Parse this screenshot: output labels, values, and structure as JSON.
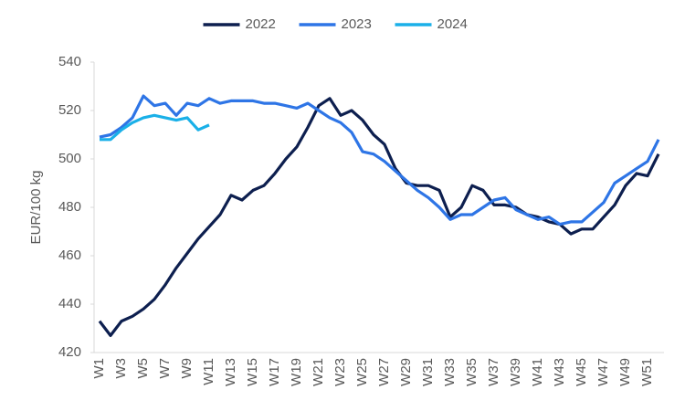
{
  "chart_data": {
    "type": "line",
    "y_label": "EUR/100 kg",
    "categories": [
      "W1",
      null,
      "W3",
      null,
      "W5",
      null,
      "W7",
      null,
      "W9",
      null,
      "W11",
      null,
      "W13",
      null,
      "W15",
      null,
      "W17",
      null,
      "W19",
      null,
      "W21",
      null,
      "W23",
      null,
      "W25",
      null,
      "W27",
      null,
      "W29",
      null,
      "W31",
      null,
      "W33",
      null,
      "W35",
      null,
      "W37",
      null,
      "W39",
      null,
      "W41",
      null,
      "W43",
      null,
      "W45",
      null,
      "W47",
      null,
      "W49",
      null,
      "W51",
      null
    ],
    "series": [
      {
        "name": "2022",
        "color": "#0d1f4f",
        "values": [
          433,
          427,
          433,
          435,
          438,
          442,
          448,
          455,
          461,
          467,
          472,
          477,
          485,
          483,
          487,
          489,
          494,
          500,
          505,
          513,
          522,
          525,
          518,
          520,
          516,
          510,
          506,
          496,
          490,
          489,
          489,
          487,
          476,
          480,
          489,
          487,
          481,
          481,
          480,
          477,
          476,
          474,
          473,
          469,
          471,
          471,
          476,
          481,
          489,
          494,
          493,
          502
        ]
      },
      {
        "name": "2023",
        "color": "#2e75e6",
        "values": [
          509,
          510,
          513,
          517,
          526,
          522,
          523,
          518,
          523,
          522,
          525,
          523,
          524,
          524,
          524,
          523,
          523,
          522,
          521,
          523,
          520,
          517,
          515,
          511,
          503,
          502,
          499,
          495,
          491,
          487,
          484,
          480,
          475,
          477,
          477,
          480,
          483,
          484,
          479,
          477,
          475,
          476,
          473,
          474,
          474,
          478,
          482,
          490,
          493,
          496,
          499,
          508
        ]
      },
      {
        "name": "2024",
        "color": "#1ab0e8",
        "values": [
          508,
          508,
          512,
          515,
          517,
          518,
          517,
          516,
          517,
          512,
          514,
          null,
          null,
          null,
          null,
          null,
          null,
          null,
          null,
          null,
          null,
          null,
          null,
          null,
          null,
          null,
          null,
          null,
          null,
          null,
          null,
          null,
          null,
          null,
          null,
          null,
          null,
          null,
          null,
          null,
          null,
          null,
          null,
          null,
          null,
          null,
          null,
          null,
          null,
          null,
          null,
          null
        ]
      }
    ],
    "ylim": [
      420,
      540
    ],
    "yticks": [
      420,
      440,
      460,
      480,
      500,
      520,
      540
    ],
    "grid": false,
    "legend": "top"
  }
}
